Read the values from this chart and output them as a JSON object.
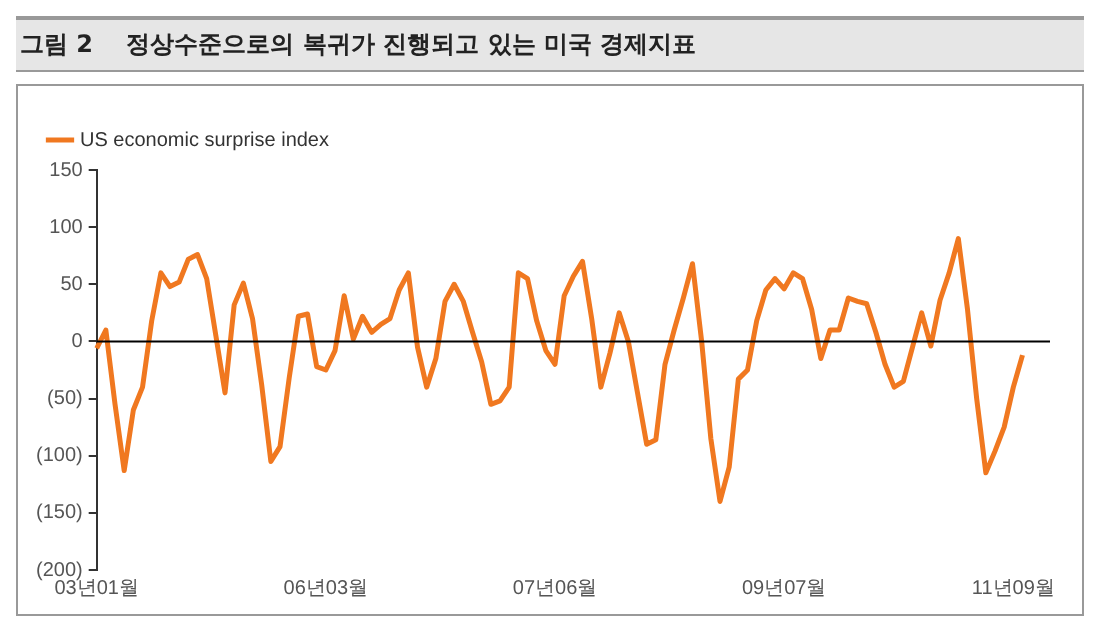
{
  "chart_data": {
    "type": "line",
    "title": "그림 2    정상수준으로의 복귀가 진행되고 있는 미국 경제지표",
    "categories": [
      "03년01월",
      null,
      null,
      null,
      null,
      null,
      null,
      null,
      null,
      null,
      null,
      null,
      null,
      null,
      null,
      null,
      null,
      null,
      null,
      null,
      null,
      null,
      null,
      null,
      null,
      "06년03월",
      null,
      null,
      null,
      null,
      null,
      null,
      null,
      null,
      null,
      null,
      null,
      null,
      null,
      null,
      null,
      null,
      null,
      null,
      null,
      null,
      null,
      null,
      null,
      null,
      "07년06월",
      null,
      null,
      null,
      null,
      null,
      null,
      null,
      null,
      null,
      null,
      null,
      null,
      null,
      null,
      null,
      null,
      null,
      null,
      null,
      null,
      null,
      null,
      null,
      null,
      "09년07월",
      null,
      null,
      null,
      null,
      null,
      null,
      null,
      null,
      null,
      null,
      null,
      null,
      null,
      null,
      null,
      null,
      null,
      null,
      null,
      null,
      null,
      null,
      null,
      null,
      "11년09월",
      null,
      null,
      null,
      null
    ],
    "series": [
      {
        "name": "US economic surprise index",
        "color": "#f07820",
        "values": [
          -6,
          10,
          -55,
          -113,
          -60,
          -40,
          18,
          60,
          48,
          52,
          72,
          76,
          55,
          5,
          -45,
          32,
          51,
          20,
          -38,
          -105,
          -92,
          -32,
          22,
          24,
          -22,
          -25,
          -8,
          40,
          2,
          22,
          8,
          15,
          20,
          45,
          60,
          -5,
          -40,
          -15,
          35,
          50,
          35,
          8,
          -18,
          -55,
          -52,
          -40,
          60,
          55,
          18,
          -8,
          -20,
          40,
          57,
          70,
          20,
          -40,
          -10,
          25,
          0,
          -45,
          -90,
          -86,
          -20,
          10,
          38,
          68,
          0,
          -85,
          -140,
          -110,
          -33,
          -25,
          18,
          45,
          55,
          46,
          60,
          55,
          28,
          -15,
          10,
          10,
          38,
          35,
          33,
          8,
          -20,
          -40,
          -35,
          -5,
          25,
          -4,
          36,
          60,
          90,
          28,
          -50,
          -115,
          -96,
          -75,
          -40,
          -12,
          null,
          null,
          null
        ]
      }
    ],
    "ylim": [
      -200,
      150
    ],
    "yticks": [
      150,
      100,
      50,
      0,
      {
        "value": -50,
        "label": "(50)"
      },
      {
        "value": -100,
        "label": "(100)"
      },
      {
        "value": -150,
        "label": "(150)"
      },
      {
        "value": -200,
        "label": "(200)"
      }
    ],
    "ref_lines": [
      {
        "axis": "y",
        "value": 0,
        "color": "#000000"
      }
    ],
    "grid": false,
    "legend": "top left",
    "marker": "none",
    "line_style": "solid"
  }
}
